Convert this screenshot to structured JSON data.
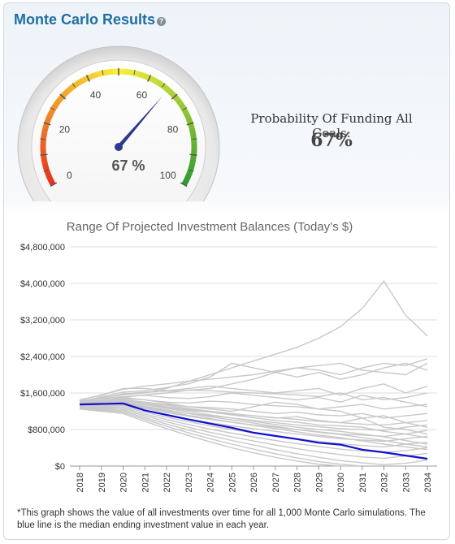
{
  "header": {
    "title": "Monte Carlo Results",
    "help_icon": "question-mark-icon"
  },
  "gauge": {
    "value": 67,
    "display": "67 %",
    "min": 0,
    "max": 100,
    "tick_labels": [
      "0",
      "20",
      "40",
      "60",
      "80",
      "100"
    ],
    "colors": {
      "low": "#e8301c",
      "mid": "#f7f03a",
      "high": "#2f9a2f",
      "needle": "#2b3a8c"
    }
  },
  "probability": {
    "label": "Probability Of Funding All Goals:",
    "value": "67%"
  },
  "chart_data": {
    "type": "line",
    "title": "Range Of Projected Investment Balances (Today’s $)",
    "x": [
      "2018",
      "2019",
      "2020",
      "2021",
      "2022",
      "2023",
      "2024",
      "2025",
      "2026",
      "2027",
      "2028",
      "2029",
      "2030",
      "2031",
      "2032",
      "2033",
      "2034"
    ],
    "ylim": [
      0,
      4800000
    ],
    "yticks": [
      0,
      800000,
      1600000,
      2400000,
      3200000,
      4000000,
      4800000
    ],
    "ytick_labels": [
      "$0",
      "$800,000",
      "$1,600,000",
      "$2,400,000",
      "$3,200,000",
      "$4,000,000",
      "$4,800,000"
    ],
    "grid": "horizontal",
    "median": {
      "color": "#1010d0",
      "values": [
        1350000,
        1360000,
        1370000,
        1220000,
        1120000,
        1020000,
        930000,
        840000,
        730000,
        660000,
        590000,
        510000,
        470000,
        360000,
        300000,
        230000,
        160000
      ]
    },
    "simulations": {
      "color": "#c8c8c8",
      "series": [
        [
          1420000,
          1500000,
          1560000,
          1600000,
          1700000,
          1850000,
          2000000,
          2150000,
          2300000,
          2450000,
          2600000,
          2800000,
          3050000,
          3450000,
          4050000,
          3300000,
          2850000
        ],
        [
          1400000,
          1520000,
          1620000,
          1650000,
          1720000,
          1800000,
          1950000,
          2250000,
          2150000,
          2050000,
          2150000,
          2100000,
          2000000,
          2150000,
          2250000,
          2200000,
          2350000
        ],
        [
          1380000,
          1450000,
          1500000,
          1560000,
          1600000,
          1660000,
          1700000,
          1800000,
          1900000,
          2050000,
          1950000,
          2050000,
          1900000,
          2000000,
          2150000,
          2250000,
          2100000
        ],
        [
          1450000,
          1550000,
          1700000,
          1700000,
          1650000,
          1700000,
          1750000,
          1700000,
          1650000,
          1600000,
          1650000,
          1700000,
          1550000,
          1700000,
          1800000,
          1600000,
          1750000
        ],
        [
          1400000,
          1480000,
          1520000,
          1550000,
          1500000,
          1480000,
          1520000,
          1600000,
          1550000,
          1500000,
          1450000,
          1500000,
          1400000,
          1550000,
          1450000,
          1500000,
          1600000
        ],
        [
          1360000,
          1420000,
          1480000,
          1450000,
          1400000,
          1380000,
          1420000,
          1400000,
          1350000,
          1320000,
          1300000,
          1250000,
          1300000,
          1350000,
          1250000,
          1300000,
          1350000
        ],
        [
          1350000,
          1400000,
          1440000,
          1400000,
          1350000,
          1300000,
          1280000,
          1250000,
          1200000,
          1150000,
          1180000,
          1120000,
          1100000,
          1150000,
          1050000,
          1100000,
          1150000
        ],
        [
          1340000,
          1380000,
          1400000,
          1350000,
          1280000,
          1220000,
          1180000,
          1130000,
          1100000,
          1060000,
          1020000,
          980000,
          950000,
          920000,
          900000,
          950000,
          1000000
        ],
        [
          1330000,
          1360000,
          1380000,
          1300000,
          1220000,
          1150000,
          1100000,
          1050000,
          1000000,
          950000,
          900000,
          860000,
          820000,
          800000,
          780000,
          850000,
          900000
        ],
        [
          1320000,
          1340000,
          1360000,
          1260000,
          1170000,
          1090000,
          1020000,
          960000,
          900000,
          850000,
          800000,
          750000,
          700000,
          680000,
          650000,
          700000,
          780000
        ],
        [
          1310000,
          1320000,
          1330000,
          1220000,
          1120000,
          1030000,
          950000,
          880000,
          820000,
          760000,
          700000,
          650000,
          600000,
          570000,
          540000,
          600000,
          650000
        ],
        [
          1300000,
          1300000,
          1300000,
          1180000,
          1070000,
          970000,
          880000,
          800000,
          730000,
          660000,
          600000,
          540000,
          490000,
          450000,
          420000,
          480000,
          520000
        ],
        [
          1290000,
          1280000,
          1270000,
          1140000,
          1020000,
          910000,
          810000,
          720000,
          640000,
          560000,
          490000,
          430000,
          370000,
          330000,
          300000,
          340000,
          400000
        ],
        [
          1280000,
          1260000,
          1240000,
          1100000,
          970000,
          850000,
          740000,
          640000,
          550000,
          460000,
          380000,
          310000,
          250000,
          200000,
          170000,
          220000,
          280000
        ],
        [
          1270000,
          1240000,
          1210000,
          1060000,
          920000,
          790000,
          670000,
          560000,
          460000,
          360000,
          270000,
          190000,
          120000,
          70000,
          30000,
          60000,
          130000
        ],
        [
          1260000,
          1220000,
          1180000,
          1020000,
          870000,
          730000,
          600000,
          480000,
          370000,
          270000,
          180000,
          100000,
          40000,
          0,
          0,
          0,
          0
        ],
        [
          1250000,
          1200000,
          1150000,
          980000,
          820000,
          670000,
          530000,
          400000,
          290000,
          190000,
          110000,
          40000,
          0,
          0,
          0,
          0,
          0
        ],
        [
          1420000,
          1480000,
          1500000,
          1450000,
          1380000,
          1300000,
          1250000,
          1200000,
          1300000,
          1400000,
          1350000,
          1250000,
          1200000,
          1050000,
          1100000,
          950000,
          850000
        ],
        [
          1390000,
          1430000,
          1460000,
          1400000,
          1330000,
          1260000,
          1200000,
          1150000,
          1100000,
          1050000,
          1080000,
          1000000,
          950000,
          1050000,
          850000,
          800000,
          700000
        ],
        [
          1370000,
          1410000,
          1430000,
          1380000,
          1300000,
          1240000,
          1180000,
          1120000,
          1060000,
          1000000,
          960000,
          900000,
          880000,
          850000,
          760000,
          700000,
          620000
        ],
        [
          1360000,
          1390000,
          1410000,
          1340000,
          1260000,
          1190000,
          1120000,
          1050000,
          980000,
          910000,
          850000,
          800000,
          760000,
          700000,
          640000,
          560000,
          480000
        ],
        [
          1350000,
          1370000,
          1390000,
          1310000,
          1230000,
          1150000,
          1080000,
          1010000,
          940000,
          870000,
          800000,
          740000,
          690000,
          620000,
          560000,
          480000,
          420000
        ],
        [
          1340000,
          1350000,
          1360000,
          1280000,
          1200000,
          1110000,
          1040000,
          960000,
          890000,
          820000,
          750000,
          680000,
          620000,
          550000,
          480000,
          420000,
          360000
        ],
        [
          1440000,
          1560000,
          1680000,
          1750000,
          1800000,
          1860000,
          1900000,
          1950000,
          2000000,
          2080000,
          2150000,
          2200000,
          2250000,
          2100000,
          2050000,
          2000000,
          2250000
        ],
        [
          1410000,
          1490000,
          1580000,
          1620000,
          1640000,
          1660000,
          1650000,
          1620000,
          1600000,
          1580000,
          1560000,
          1520000,
          1600000,
          1450000,
          1500000,
          1400000,
          1300000
        ]
      ]
    }
  },
  "footnote": "*This graph shows the value of all investments over time for all 1,000 Monte Carlo simulations. The blue line is the median ending investment value in each year."
}
